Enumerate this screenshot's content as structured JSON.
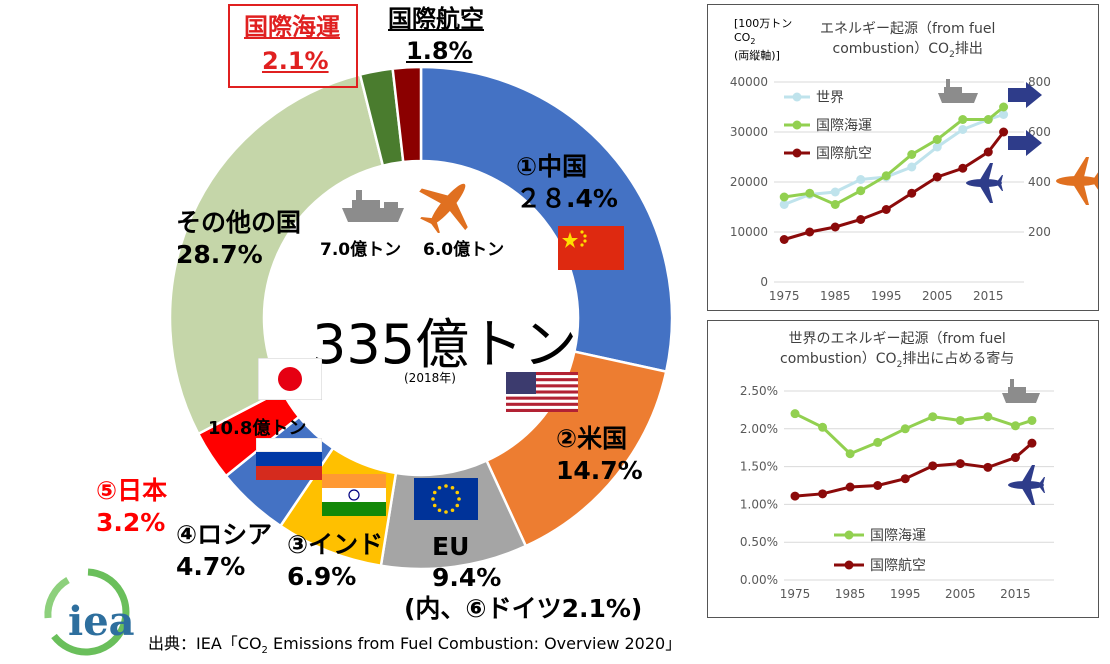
{
  "colors": {
    "china": "#4472c4",
    "usa": "#ed7d31",
    "eu": "#a5a5a5",
    "india": "#ffc000",
    "russia": "#4472c4",
    "japan": "#ff0000",
    "others": "#c5d6a9",
    "shipping": "#4a7c2e",
    "aviation": "#8b0000",
    "world_line": "#bfe3ec",
    "shipping_line": "#92d050",
    "aviation_line": "#8b0a0a",
    "arrow_blue": "#2e3c8a",
    "arrow_orange": "#e07020"
  },
  "donut": {
    "center_total": "335億トン",
    "center_year": "(2018年)",
    "shipping_volume": "7.0億トン",
    "aviation_volume": "6.0億トン",
    "japan_volume": "10.8億トン",
    "labels": {
      "china_name": "①中国",
      "china_share": "２８.4%",
      "usa_name": "②米国",
      "usa_share": "14.7%",
      "eu_name": "EU",
      "eu_share": "9.4%",
      "eu_note": "(内、⑥ドイツ2.1%)",
      "india_name": "③インド",
      "india_share": "6.9%",
      "russia_name": "④ロシア",
      "russia_share": "4.7%",
      "japan_name": "⑤日本",
      "japan_share": "3.2%",
      "others_name": "その他の国",
      "others_share": "28.7%",
      "shipping_name": "国際海運",
      "shipping_share": "2.1%",
      "aviation_name": "国際航空",
      "aviation_share": "1.8%"
    }
  },
  "source": {
    "logo": "iea",
    "prefix": "出典：IEA「CO",
    "sub": "2",
    "suffix": " Emissions from Fuel Combustion: Overview 2020」"
  },
  "icons": [
    "ship-icon",
    "plane-icon",
    "flag-china-icon",
    "flag-usa-icon",
    "flag-eu-icon",
    "flag-india-icon",
    "flag-russia-icon",
    "flag-japan-icon",
    "arrow-right-icon"
  ],
  "chart_data": [
    {
      "type": "pie",
      "title": "335億トン",
      "subtitle": "(2018年)",
      "categories": [
        "①中国",
        "②米国",
        "EU",
        "③インド",
        "④ロシア",
        "⑤日本",
        "その他の国",
        "国際海運",
        "国際航空"
      ],
      "values": [
        28.4,
        14.7,
        9.4,
        6.9,
        4.7,
        3.2,
        28.7,
        2.1,
        1.8
      ],
      "units": "%"
    },
    {
      "type": "line",
      "title": "エネルギー起源（from fuel combustion）CO2排出",
      "ylabel": "[100万トン CO2 (両縦軸)]",
      "x": [
        1975,
        1980,
        1985,
        1990,
        1995,
        2000,
        2005,
        2010,
        2015,
        2018
      ],
      "x_ticks": [
        "1975",
        "1985",
        "1995",
        "2005",
        "2015"
      ],
      "xlim": [
        1973,
        2022
      ],
      "ylim": [
        0,
        40000
      ],
      "y_ticks": [
        "0",
        "10000",
        "20000",
        "30000",
        "40000"
      ],
      "y2lim": [
        0,
        800
      ],
      "y2_ticks": [
        "200",
        "400",
        "600",
        "800"
      ],
      "series": [
        {
          "name": "世界",
          "axis": "left",
          "values": [
            15500,
            17500,
            18000,
            20500,
            21000,
            23000,
            27000,
            30500,
            32500,
            33500
          ]
        },
        {
          "name": "国際海運",
          "axis": "right",
          "values": [
            340,
            355,
            310,
            365,
            425,
            510,
            570,
            650,
            650,
            700
          ]
        },
        {
          "name": "国際航空",
          "axis": "right",
          "values": [
            170,
            200,
            220,
            250,
            290,
            355,
            420,
            455,
            520,
            600
          ]
        }
      ],
      "legend": "top-left"
    },
    {
      "type": "line",
      "title": "世界のエネルギー起源（from fuel combustion）CO2排出に占める寄与",
      "x": [
        1975,
        1980,
        1985,
        1990,
        1995,
        2000,
        2005,
        2010,
        2015,
        2018
      ],
      "x_ticks": [
        "1975",
        "1985",
        "1995",
        "2005",
        "2015"
      ],
      "xlim": [
        1973,
        2022
      ],
      "ylim": [
        0,
        2.5
      ],
      "y_ticks": [
        "0.00%",
        "0.50%",
        "1.00%",
        "1.50%",
        "2.00%",
        "2.50%"
      ],
      "series": [
        {
          "name": "国際海運",
          "values": [
            2.2,
            2.02,
            1.67,
            1.82,
            2.0,
            2.16,
            2.11,
            2.16,
            2.04,
            2.11
          ]
        },
        {
          "name": "国際航空",
          "values": [
            1.11,
            1.14,
            1.23,
            1.25,
            1.34,
            1.51,
            1.54,
            1.49,
            1.62,
            1.81
          ]
        }
      ],
      "legend": "bottom-left"
    }
  ],
  "line1": {
    "unit_line1": "[100万トン",
    "unit_line2": "CO",
    "unit_sub": "2",
    "unit_line3": "(両縦軸)]",
    "title_line1": "エネルギー起源（from fuel",
    "title_line2a": "combustion）CO",
    "title_sub": "2",
    "title_line2b": "排出"
  },
  "line2": {
    "title_line1": "世界のエネルギー起源（from fuel",
    "title_line2a": "combustion）CO",
    "title_sub": "2",
    "title_line2b": "排出に占める寄与"
  }
}
